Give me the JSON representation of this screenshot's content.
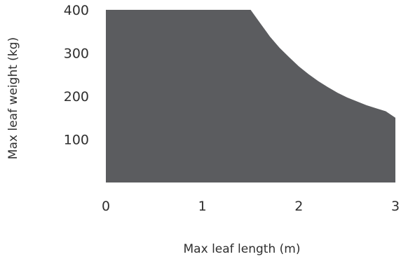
{
  "chart_data": {
    "type": "area",
    "title": "",
    "xlabel": "Max leaf length (m)",
    "ylabel": "Max leaf weight (kg)",
    "xlim": [
      0,
      3
    ],
    "ylim": [
      0,
      400
    ],
    "x_ticks": [
      "0",
      "1",
      "2",
      "3"
    ],
    "y_ticks": [
      "100",
      "200",
      "300",
      "400"
    ],
    "grid": false,
    "legend": "none",
    "fill_color": "#5b5c5f",
    "series": [
      {
        "x": [
          0,
          1.5,
          1.6,
          1.7,
          1.8,
          1.9,
          2.0,
          2.1,
          2.2,
          2.3,
          2.4,
          2.5,
          2.6,
          2.7,
          2.8,
          2.9,
          3.0
        ],
        "y": [
          400,
          400,
          369,
          338,
          312,
          290,
          269,
          251,
          235,
          221,
          208,
          197,
          188,
          179,
          172,
          165,
          150
        ]
      }
    ]
  }
}
